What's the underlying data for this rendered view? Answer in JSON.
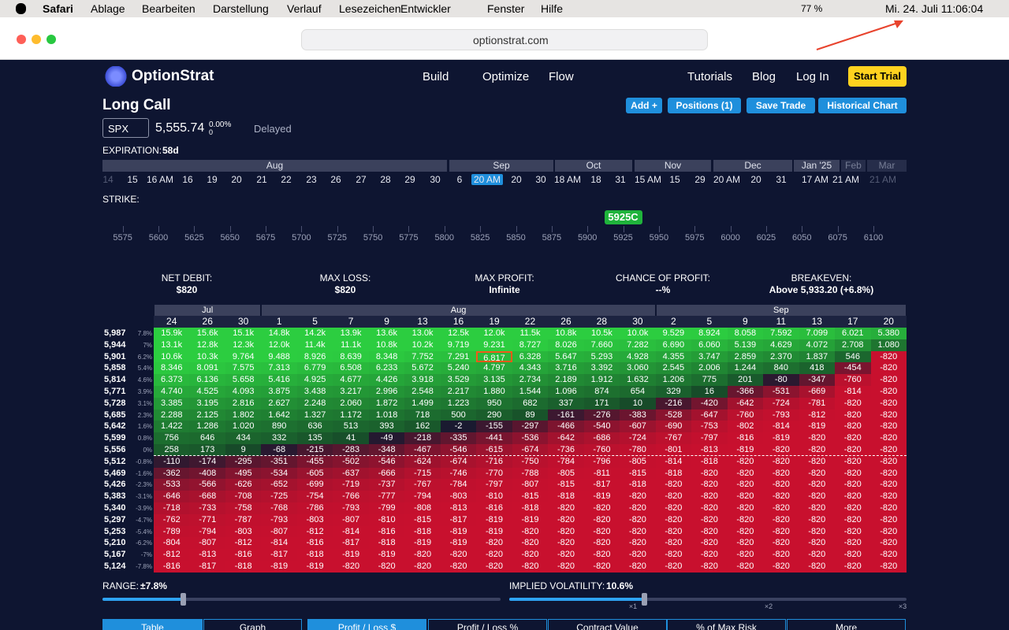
{
  "menubar": {
    "app": "Safari",
    "items": [
      "Ablage",
      "Bearbeiten",
      "Darstellung",
      "Verlauf",
      "Lesezeichen",
      "Entwickler",
      "Fenster",
      "Hilfe"
    ],
    "battery": "77 %",
    "clock": "Mi. 24. Juli  11:06:04"
  },
  "browser": {
    "url": "optionstrat.com"
  },
  "nav": {
    "brand": "OptionStrat",
    "items": [
      "Build",
      "Optimize",
      "Flow",
      "Tutorials",
      "Blog",
      "Log In"
    ],
    "cta": "Start Trial"
  },
  "strategy": {
    "title": "Long Call",
    "buttons": [
      "Add +",
      "Positions (1)",
      "Save Trade",
      "Historical Chart"
    ],
    "symbol": "SPX",
    "price": "5,555.74",
    "change": "0.00%",
    "change_abs": "0",
    "status": "Delayed"
  },
  "expiration": {
    "label": "EXPIRATION:",
    "value": "58d",
    "months": [
      "Aug",
      "Sep",
      "Oct",
      "Nov",
      "Dec",
      "Jan '25",
      "Feb",
      "Mar"
    ],
    "days": [
      "14",
      "15",
      "16 AM",
      "16",
      "19",
      "20",
      "21",
      "22",
      "23",
      "26",
      "27",
      "28",
      "29",
      "30",
      "6",
      "20 AM",
      "20",
      "30",
      "18 AM",
      "18",
      "31",
      "15 AM",
      "15",
      "29",
      "20 AM",
      "20",
      "31",
      "17 AM",
      "21 AM",
      "21 AM"
    ]
  },
  "strike": {
    "label": "STRIKE:",
    "selected": "5925C",
    "ticks": [
      5575,
      5600,
      5625,
      5650,
      5675,
      5700,
      5725,
      5750,
      5775,
      5800,
      5825,
      5850,
      5875,
      5900,
      5925,
      5950,
      5975,
      6000,
      6025,
      6050,
      6075,
      6100
    ]
  },
  "stats": [
    {
      "label": "NET DEBIT:",
      "value": "$820"
    },
    {
      "label": "MAX LOSS:",
      "value": "$820"
    },
    {
      "label": "MAX PROFIT:",
      "value": "Infinite"
    },
    {
      "label": "CHANCE OF PROFIT:",
      "value": "--%"
    },
    {
      "label": "BREAKEVEN:",
      "value": "Above 5,933.20 (+6.8%)"
    }
  ],
  "table": {
    "months": [
      "Jul",
      "Aug",
      "Sep"
    ],
    "days": [
      "24",
      "26",
      "30",
      "1",
      "5",
      "7",
      "9",
      "13",
      "16",
      "19",
      "22",
      "26",
      "28",
      "30",
      "2",
      "5",
      "9",
      "11",
      "13",
      "17",
      "20"
    ],
    "rows": [
      {
        "strike": "5,987",
        "pct": "7.8%",
        "cells": [
          "15.9k",
          "15.6k",
          "15.1k",
          "14.8k",
          "14.2k",
          "13.9k",
          "13.6k",
          "13.0k",
          "12.5k",
          "12.0k",
          "11.5k",
          "10.8k",
          "10.5k",
          "10.0k",
          "9.529",
          "8.924",
          "8.058",
          "7.592",
          "7.099",
          "6.021",
          "5.380"
        ]
      },
      {
        "strike": "5,944",
        "pct": "7%",
        "cells": [
          "13.1k",
          "12.8k",
          "12.3k",
          "12.0k",
          "11.4k",
          "11.1k",
          "10.8k",
          "10.2k",
          "9.719",
          "9.231",
          "8.727",
          "8.026",
          "7.660",
          "7.282",
          "6.690",
          "6.060",
          "5.139",
          "4.629",
          "4.072",
          "2.708",
          "1.080"
        ]
      },
      {
        "strike": "5,901",
        "pct": "6.2%",
        "cells": [
          "10.6k",
          "10.3k",
          "9.764",
          "9.488",
          "8.926",
          "8.639",
          "8.348",
          "7.752",
          "7.291",
          "6.817",
          "6.328",
          "5.647",
          "5.293",
          "4.928",
          "4.355",
          "3.747",
          "2.859",
          "2.370",
          "1.837",
          "546",
          "-820"
        ]
      },
      {
        "strike": "5,858",
        "pct": "5.4%",
        "cells": [
          "8.346",
          "8.091",
          "7.575",
          "7.313",
          "6.779",
          "6.508",
          "6.233",
          "5.672",
          "5.240",
          "4.797",
          "4.343",
          "3.716",
          "3.392",
          "3.060",
          "2.545",
          "2.006",
          "1.244",
          "840",
          "418",
          "-454",
          "-820"
        ]
      },
      {
        "strike": "5,814",
        "pct": "4.6%",
        "cells": [
          "6.373",
          "6.136",
          "5.658",
          "5.416",
          "4.925",
          "4.677",
          "4.426",
          "3.918",
          "3.529",
          "3.135",
          "2.734",
          "2.189",
          "1.912",
          "1.632",
          "1.206",
          "775",
          "201",
          "-80",
          "-347",
          "-760",
          "-820"
        ]
      },
      {
        "strike": "5,771",
        "pct": "3.9%",
        "cells": [
          "4.740",
          "4.525",
          "4.093",
          "3.875",
          "3.438",
          "3.217",
          "2.996",
          "2.548",
          "2.217",
          "1.880",
          "1.544",
          "1.096",
          "874",
          "654",
          "329",
          "16",
          "-366",
          "-531",
          "-669",
          "-814",
          "-820"
        ]
      },
      {
        "strike": "5,728",
        "pct": "3.1%",
        "cells": [
          "3.385",
          "3.195",
          "2.816",
          "2.627",
          "2.248",
          "2.060",
          "1.872",
          "1.499",
          "1.223",
          "950",
          "682",
          "337",
          "171",
          "10",
          "-216",
          "-420",
          "-642",
          "-724",
          "-781",
          "-820",
          "-820"
        ]
      },
      {
        "strike": "5,685",
        "pct": "2.3%",
        "cells": [
          "2.288",
          "2.125",
          "1.802",
          "1.642",
          "1.327",
          "1.172",
          "1.018",
          "718",
          "500",
          "290",
          "89",
          "-161",
          "-276",
          "-383",
          "-528",
          "-647",
          "-760",
          "-793",
          "-812",
          "-820",
          "-820"
        ]
      },
      {
        "strike": "5,642",
        "pct": "1.6%",
        "cells": [
          "1.422",
          "1.286",
          "1.020",
          "890",
          "636",
          "513",
          "393",
          "162",
          "-2",
          "-155",
          "-297",
          "-466",
          "-540",
          "-607",
          "-690",
          "-753",
          "-802",
          "-814",
          "-819",
          "-820",
          "-820"
        ]
      },
      {
        "strike": "5,599",
        "pct": "0.8%",
        "cells": [
          "756",
          "646",
          "434",
          "332",
          "135",
          "41",
          "-49",
          "-218",
          "-335",
          "-441",
          "-536",
          "-642",
          "-686",
          "-724",
          "-767",
          "-797",
          "-816",
          "-819",
          "-820",
          "-820",
          "-820"
        ]
      },
      {
        "strike": "5,556",
        "pct": "0%",
        "cells": [
          "258",
          "173",
          "9",
          "-68",
          "-215",
          "-283",
          "-348",
          "-467",
          "-546",
          "-615",
          "-674",
          "-736",
          "-760",
          "-780",
          "-801",
          "-813",
          "-819",
          "-820",
          "-820",
          "-820",
          "-820"
        ]
      },
      {
        "strike": "5,512",
        "pct": "-0.8%",
        "cells": [
          "-110",
          "-174",
          "-295",
          "-351",
          "-455",
          "-502",
          "-546",
          "-624",
          "-674",
          "-716",
          "-750",
          "-784",
          "-796",
          "-805",
          "-814",
          "-818",
          "-820",
          "-820",
          "-820",
          "-820",
          "-820"
        ]
      },
      {
        "strike": "5,469",
        "pct": "-1.6%",
        "cells": [
          "-362",
          "-408",
          "-495",
          "-534",
          "-605",
          "-637",
          "-666",
          "-715",
          "-746",
          "-770",
          "-788",
          "-805",
          "-811",
          "-815",
          "-818",
          "-820",
          "-820",
          "-820",
          "-820",
          "-820",
          "-820"
        ]
      },
      {
        "strike": "5,426",
        "pct": "-2.3%",
        "cells": [
          "-533",
          "-566",
          "-626",
          "-652",
          "-699",
          "-719",
          "-737",
          "-767",
          "-784",
          "-797",
          "-807",
          "-815",
          "-817",
          "-818",
          "-820",
          "-820",
          "-820",
          "-820",
          "-820",
          "-820",
          "-820"
        ]
      },
      {
        "strike": "5,383",
        "pct": "-3.1%",
        "cells": [
          "-646",
          "-668",
          "-708",
          "-725",
          "-754",
          "-766",
          "-777",
          "-794",
          "-803",
          "-810",
          "-815",
          "-818",
          "-819",
          "-820",
          "-820",
          "-820",
          "-820",
          "-820",
          "-820",
          "-820",
          "-820"
        ]
      },
      {
        "strike": "5,340",
        "pct": "-3.9%",
        "cells": [
          "-718",
          "-733",
          "-758",
          "-768",
          "-786",
          "-793",
          "-799",
          "-808",
          "-813",
          "-816",
          "-818",
          "-820",
          "-820",
          "-820",
          "-820",
          "-820",
          "-820",
          "-820",
          "-820",
          "-820",
          "-820"
        ]
      },
      {
        "strike": "5,297",
        "pct": "-4.7%",
        "cells": [
          "-762",
          "-771",
          "-787",
          "-793",
          "-803",
          "-807",
          "-810",
          "-815",
          "-817",
          "-819",
          "-819",
          "-820",
          "-820",
          "-820",
          "-820",
          "-820",
          "-820",
          "-820",
          "-820",
          "-820",
          "-820"
        ]
      },
      {
        "strike": "5,253",
        "pct": "-5.4%",
        "cells": [
          "-789",
          "-794",
          "-803",
          "-807",
          "-812",
          "-814",
          "-816",
          "-818",
          "-819",
          "-819",
          "-820",
          "-820",
          "-820",
          "-820",
          "-820",
          "-820",
          "-820",
          "-820",
          "-820",
          "-820",
          "-820"
        ]
      },
      {
        "strike": "5,210",
        "pct": "-6.2%",
        "cells": [
          "-804",
          "-807",
          "-812",
          "-814",
          "-816",
          "-817",
          "-818",
          "-819",
          "-819",
          "-820",
          "-820",
          "-820",
          "-820",
          "-820",
          "-820",
          "-820",
          "-820",
          "-820",
          "-820",
          "-820",
          "-820"
        ]
      },
      {
        "strike": "5,167",
        "pct": "-7%",
        "cells": [
          "-812",
          "-813",
          "-816",
          "-817",
          "-818",
          "-819",
          "-819",
          "-820",
          "-820",
          "-820",
          "-820",
          "-820",
          "-820",
          "-820",
          "-820",
          "-820",
          "-820",
          "-820",
          "-820",
          "-820",
          "-820"
        ]
      },
      {
        "strike": "5,124",
        "pct": "-7.8%",
        "cells": [
          "-816",
          "-817",
          "-818",
          "-819",
          "-819",
          "-820",
          "-820",
          "-820",
          "-820",
          "-820",
          "-820",
          "-820",
          "-820",
          "-820",
          "-820",
          "-820",
          "-820",
          "-820",
          "-820",
          "-820",
          "-820"
        ]
      }
    ]
  },
  "controls": {
    "range_label": "RANGE:",
    "range_value": "±7.8%",
    "iv_label": "IMPLIED VOLATILITY:",
    "iv_value": "10.6%",
    "multipliers": [
      "×1",
      "×2",
      "×3"
    ]
  },
  "tabs": {
    "view": [
      "Table",
      "Graph"
    ],
    "metric": [
      "Profit / Loss $",
      "Profit / Loss %",
      "Contract Value",
      "% of Max Risk",
      "More"
    ]
  }
}
